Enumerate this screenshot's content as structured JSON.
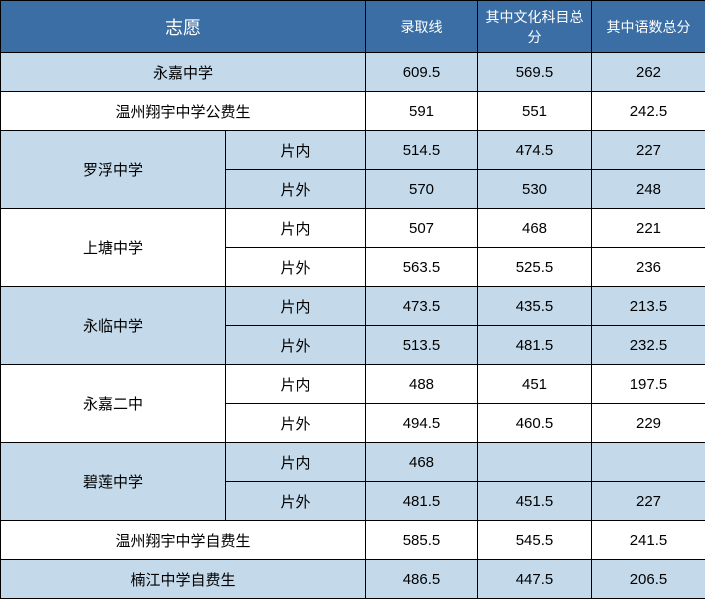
{
  "colors": {
    "header_bg": "#3a6ea5",
    "header_fg": "#ffffff",
    "row_shade": "#c4daeb",
    "row_plain": "#ffffff",
    "border": "#000000",
    "text": "#000000"
  },
  "header": {
    "school": "志愿",
    "col1": "录取线",
    "col2": "其中文化科目总分",
    "col3": "其中语数总分"
  },
  "rows": [
    {
      "shade": true,
      "school": "永嘉中学",
      "span": 1,
      "sub": null,
      "v1": "609.5",
      "v2": "569.5",
      "v3": "262"
    },
    {
      "shade": false,
      "school": "温州翔宇中学公费生",
      "span": 1,
      "sub": null,
      "v1": "591",
      "v2": "551",
      "v3": "242.5"
    },
    {
      "shade": true,
      "school": "罗浮中学",
      "span": 2,
      "sub": "片内",
      "v1": "514.5",
      "v2": "474.5",
      "v3": "227"
    },
    {
      "shade": true,
      "school": null,
      "span": 0,
      "sub": "片外",
      "v1": "570",
      "v2": "530",
      "v3": "248"
    },
    {
      "shade": false,
      "school": "上塘中学",
      "span": 2,
      "sub": "片内",
      "v1": "507",
      "v2": "468",
      "v3": "221"
    },
    {
      "shade": false,
      "school": null,
      "span": 0,
      "sub": "片外",
      "v1": "563.5",
      "v2": "525.5",
      "v3": "236"
    },
    {
      "shade": true,
      "school": "永临中学",
      "span": 2,
      "sub": "片内",
      "v1": "473.5",
      "v2": "435.5",
      "v3": "213.5"
    },
    {
      "shade": true,
      "school": null,
      "span": 0,
      "sub": "片外",
      "v1": "513.5",
      "v2": "481.5",
      "v3": "232.5"
    },
    {
      "shade": false,
      "school": "永嘉二中",
      "span": 2,
      "sub": "片内",
      "v1": "488",
      "v2": "451",
      "v3": "197.5"
    },
    {
      "shade": false,
      "school": null,
      "span": 0,
      "sub": "片外",
      "v1": "494.5",
      "v2": "460.5",
      "v3": "229"
    },
    {
      "shade": true,
      "school": "碧莲中学",
      "span": 2,
      "sub": "片内",
      "v1": "468",
      "v2": "",
      "v3": ""
    },
    {
      "shade": true,
      "school": null,
      "span": 0,
      "sub": "片外",
      "v1": "481.5",
      "v2": "451.5",
      "v3": "227"
    },
    {
      "shade": false,
      "school": "温州翔宇中学自费生",
      "span": 1,
      "sub": null,
      "v1": "585.5",
      "v2": "545.5",
      "v3": "241.5"
    },
    {
      "shade": true,
      "school": "楠江中学自费生",
      "span": 1,
      "sub": null,
      "v1": "486.5",
      "v2": "447.5",
      "v3": "206.5"
    }
  ]
}
